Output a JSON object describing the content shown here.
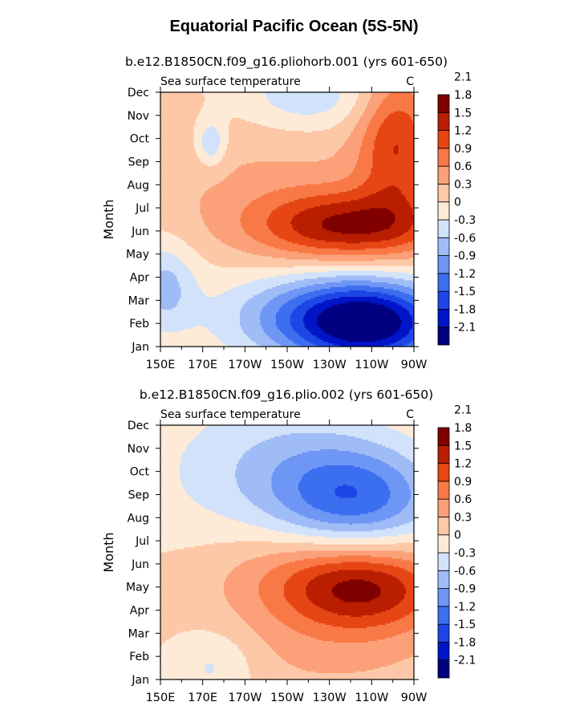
{
  "title": "Equatorial Pacific Ocean (5S-5N)",
  "colors": [
    "#000080",
    "#0014c8",
    "#1e46e6",
    "#3c6ef0",
    "#6e96f5",
    "#a0bcf7",
    "#d2e2fa",
    "#fdebd8",
    "#fdc8a8",
    "#fba078",
    "#f87846",
    "#e64614",
    "#b91e00",
    "#800000"
  ],
  "chart_data": [
    {
      "type": "heatmap",
      "subtitle": "b.e12.B1850CN.f09_g16.pliohorb.001 (yrs 601-650)",
      "left_label": "Sea surface temperature",
      "right_label": "C",
      "ylabel": "Month",
      "xlabel": "",
      "x_ticks": [
        "150E",
        "170E",
        "170W",
        "150W",
        "130W",
        "110W",
        "90W"
      ],
      "x_values": [
        150,
        170,
        190,
        210,
        230,
        250,
        270
      ],
      "y_ticks": [
        "Jan",
        "Feb",
        "Mar",
        "Apr",
        "May",
        "Jun",
        "Jul",
        "Aug",
        "Sep",
        "Oct",
        "Nov",
        "Dec"
      ],
      "xlim": [
        150,
        270
      ],
      "ylim": [
        1,
        12
      ],
      "legend_labels": [
        "-2.1",
        "-1.8",
        "-1.5",
        "-1.2",
        "-0.9",
        "-0.6",
        "-0.3",
        "0",
        "0.3",
        "0.6",
        "0.9",
        "1.2",
        "1.5",
        "1.8",
        "2.1"
      ],
      "features": [
        {
          "lon": 250,
          "month": 2,
          "amp": -2.0,
          "sx": 26,
          "sy": 1.3
        },
        {
          "lon": 222,
          "month": 2.3,
          "amp": -0.9,
          "sx": 32,
          "sy": 1.3
        },
        {
          "lon": 152,
          "month": 3.6,
          "amp": -0.7,
          "sx": 10,
          "sy": 1.3
        },
        {
          "lon": 238,
          "month": 6.2,
          "amp": 1.45,
          "sx": 32,
          "sy": 1.1
        },
        {
          "lon": 262,
          "month": 9.9,
          "amp": 1.1,
          "sx": 13,
          "sy": 2.2
        },
        {
          "lon": 200,
          "month": 8.3,
          "amp": 0.3,
          "sx": 50,
          "sy": 2.0
        },
        {
          "lon": 220,
          "month": 11.8,
          "amp": -0.55,
          "sx": 22,
          "sy": 1.0
        },
        {
          "lon": 174,
          "month": 9.8,
          "amp": -0.7,
          "sx": 5,
          "sy": 0.7
        }
      ]
    },
    {
      "type": "heatmap",
      "subtitle": "b.e12.B1850CN.f09_g16.plio.002 (yrs 601-650)",
      "left_label": "Sea surface temperature",
      "right_label": "C",
      "ylabel": "Month",
      "xlabel": "",
      "x_ticks": [
        "150E",
        "170E",
        "170W",
        "150W",
        "130W",
        "110W",
        "90W"
      ],
      "x_values": [
        150,
        170,
        190,
        210,
        230,
        250,
        270
      ],
      "y_ticks": [
        "Jan",
        "Feb",
        "Mar",
        "Apr",
        "May",
        "Jun",
        "Jul",
        "Aug",
        "Sep",
        "Oct",
        "Nov",
        "Dec"
      ],
      "xlim": [
        150,
        270
      ],
      "ylim": [
        1,
        12
      ],
      "legend_labels": [
        "-2.1",
        "-1.8",
        "-1.5",
        "-1.2",
        "-0.9",
        "-0.6",
        "-0.3",
        "0",
        "0.3",
        "0.6",
        "0.9",
        "1.2",
        "1.5",
        "1.8",
        "2.1"
      ],
      "features": [
        {
          "lon": 242,
          "month": 8.8,
          "amp": -1.35,
          "sx": 28,
          "sy": 1.6
        },
        {
          "lon": 212,
          "month": 10.6,
          "amp": -0.45,
          "sx": 32,
          "sy": 2.0
        },
        {
          "lon": 170,
          "month": 9.5,
          "amp": -0.2,
          "sx": 28,
          "sy": 2.5
        },
        {
          "lon": 246,
          "month": 4.9,
          "amp": 1.3,
          "sx": 28,
          "sy": 1.3
        },
        {
          "lon": 220,
          "month": 5.6,
          "amp": 0.45,
          "sx": 40,
          "sy": 1.6
        },
        {
          "lon": 230,
          "month": 2.0,
          "amp": 0.3,
          "sx": 45,
          "sy": 1.5
        },
        {
          "lon": 175,
          "month": 1.6,
          "amp": -0.45,
          "sx": 14,
          "sy": 1.1
        }
      ]
    }
  ]
}
